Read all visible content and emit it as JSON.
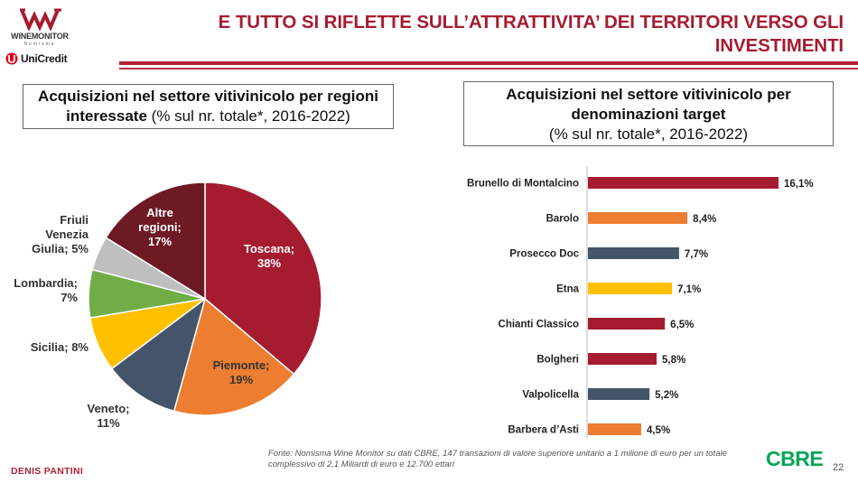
{
  "header": {
    "logo_name": "WINEMONITOR",
    "logo_sub": "Nomisma",
    "bank_name": "UniCredit",
    "title": "E TUTTO SI RIFLETTE SULL’ATTRATTIVITA’ DEI TERRITORI VERSO GLI INVESTIMENTI",
    "accent_color": "#b22234"
  },
  "left_panel": {
    "title_bold": "Acquisizioni nel settore vitivinicolo per regioni interessate",
    "title_rest": "(% sul nr. totale*, 2016-2022)"
  },
  "right_panel": {
    "title_bold": "Acquisizioni nel settore vitivinicolo per denominazioni target",
    "title_rest": "(% sul nr. totale*, 2016-2022)"
  },
  "chart_data": [
    {
      "type": "pie",
      "title": "Acquisizioni nel settore vitivinicolo per regioni interessate (% sul nr. totale*, 2016-2022)",
      "slices": [
        {
          "label": "Toscana; 38%",
          "value": 38,
          "color": "#a51c30"
        },
        {
          "label": "Piemonte; 19%",
          "value": 19,
          "color": "#ed7d31"
        },
        {
          "label": "Veneto; 11%",
          "value": 11,
          "color": "#44546a"
        },
        {
          "label": "Sicilia; 8%",
          "value": 8,
          "color": "#ffc000"
        },
        {
          "label": "Lombardia; 7%",
          "value": 7,
          "color": "#70ad47"
        },
        {
          "label": "Friuli Venezia Giulia; 5%",
          "value": 5,
          "color": "#bfbfbf"
        },
        {
          "label": "Altre regioni; 17%",
          "value": 17,
          "color": "#6d1a24"
        }
      ]
    },
    {
      "type": "bar",
      "orientation": "horizontal",
      "title": "Acquisizioni nel settore vitivinicolo per denominazioni target (% sul nr. totale*, 2016-2022)",
      "categories": [
        "Brunello di Montalcino",
        "Barolo",
        "Prosecco Doc",
        "Etna",
        "Chianti Classico",
        "Bolgheri",
        "Valpolicella",
        "Barbera d’Asti"
      ],
      "values": [
        16.1,
        8.4,
        7.7,
        7.1,
        6.5,
        5.8,
        5.2,
        4.5
      ],
      "value_labels": [
        "16,1%",
        "8,4%",
        "7,7%",
        "7,1%",
        "6,5%",
        "5,8%",
        "5,2%",
        "4,5%"
      ],
      "colors": [
        "#a51c30",
        "#ed7d31",
        "#44546a",
        "#ffc000",
        "#a51c30",
        "#a51c30",
        "#44546a",
        "#ed7d31"
      ],
      "xlim": [
        0,
        16.1
      ]
    }
  ],
  "footer": {
    "source": "Fonte: Nomisma Wine Monitor su dati CBRE, 147 transazioni di valore superiore unitario a 1 milione di euro per un totale complessivo di 2,1 Miliardi di euro e 12.700 ettari",
    "author": "DENIS PANTINI",
    "partner_logo": "CBRE",
    "partner_color": "#00a657",
    "page_number": "22"
  }
}
